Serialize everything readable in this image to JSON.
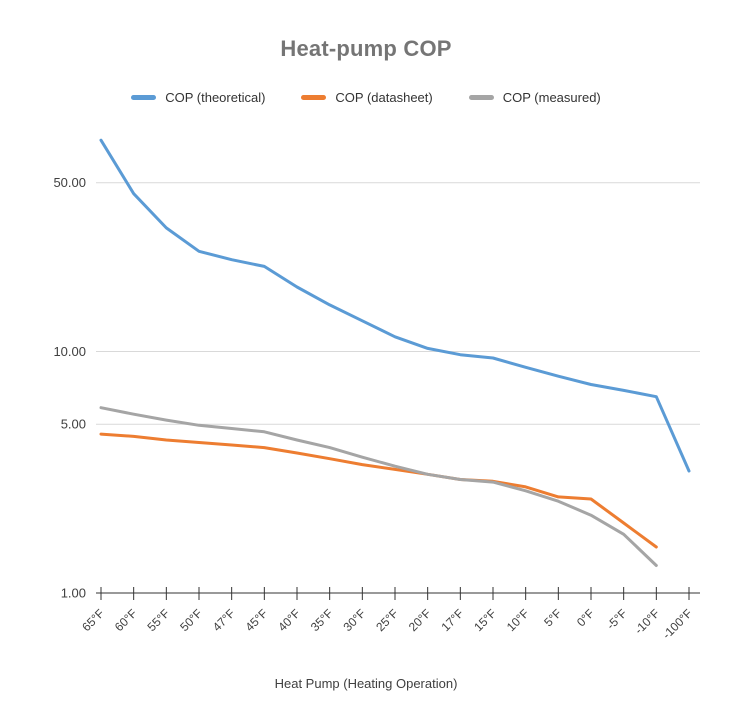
{
  "chart_data": {
    "type": "line",
    "title": "Heat-pump COP",
    "xlabel": "Heat Pump (Heating Operation)",
    "ylabel": "",
    "y_scale": "log",
    "grid": true,
    "legend_position": "top",
    "axis_color": "#333333",
    "gridline_color": "#d9d9d9",
    "y_ticks": [
      1,
      5,
      10,
      50
    ],
    "y_tick_labels": [
      "1.00",
      "5.00",
      "10.00",
      "50.00"
    ],
    "ylim": [
      1,
      85
    ],
    "categories": [
      "65°F",
      "60°F",
      "55°F",
      "50°F",
      "47°F",
      "45°F",
      "40°F",
      "35°F",
      "30°F",
      "25°F",
      "20°F",
      "17°F",
      "15°F",
      "10°F",
      "5°F",
      "0°F",
      "-5°F",
      "-10°F",
      "-100°F"
    ],
    "series": [
      {
        "name": "COP (theoretical)",
        "color": "#5b9bd5",
        "values": [
          75,
          45,
          32.5,
          26,
          24,
          22.5,
          18.5,
          15.6,
          13.4,
          11.5,
          10.3,
          9.7,
          9.4,
          8.6,
          7.9,
          7.3,
          6.9,
          6.5,
          3.2
        ]
      },
      {
        "name": "COP (datasheet)",
        "color": "#ed7d31",
        "values": [
          4.55,
          4.45,
          4.3,
          4.2,
          4.1,
          4.0,
          3.8,
          3.6,
          3.4,
          3.25,
          3.1,
          2.95,
          2.9,
          2.75,
          2.5,
          2.45,
          1.95,
          1.55,
          null
        ]
      },
      {
        "name": "COP (measured)",
        "color": "#a5a5a5",
        "values": [
          5.85,
          5.5,
          5.2,
          4.95,
          4.8,
          4.65,
          4.3,
          4.0,
          3.65,
          3.35,
          3.1,
          2.95,
          2.88,
          2.65,
          2.4,
          2.1,
          1.75,
          1.3,
          null
        ]
      }
    ]
  }
}
